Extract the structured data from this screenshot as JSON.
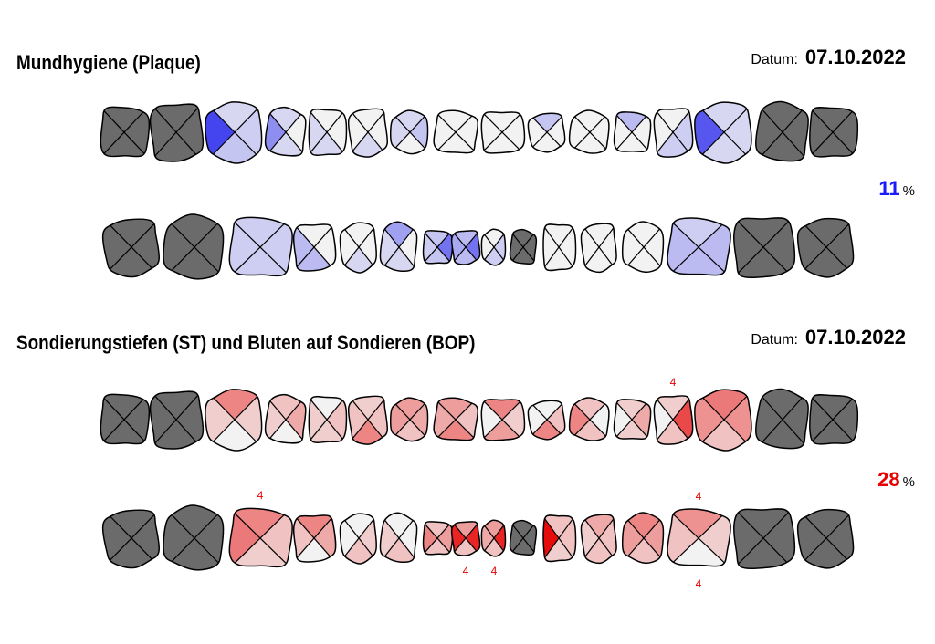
{
  "colors": {
    "plaque": "#3c3cf0",
    "bop": "#e60000",
    "missing": "#6b6b6b",
    "empty": "#f2f2f2",
    "outline": "#000000"
  },
  "plaque": {
    "title": "Mundhygiene (Plaque)",
    "datum_label": "Datum:",
    "datum_value": "07.10.2022",
    "percent_value": "11",
    "percent_unit": "%",
    "upper_row": [
      {
        "missing": true
      },
      {
        "missing": true
      },
      {
        "fill": [
          0.15,
          0.2,
          0.25,
          0.95
        ]
      },
      {
        "fill": [
          0.15,
          0,
          0.15,
          0.55
        ]
      },
      {
        "fill": [
          0,
          0,
          0.15,
          0.15
        ]
      },
      {
        "fill": [
          0,
          0,
          0.15,
          0
        ]
      },
      {
        "fill": [
          0.15,
          0.25,
          0,
          0.15
        ]
      },
      {
        "fill": [
          0,
          0,
          0,
          0
        ]
      },
      {
        "fill": [
          0,
          0,
          0,
          0
        ]
      },
      {
        "fill": [
          0.25,
          0,
          0,
          0
        ]
      },
      {
        "fill": [
          0,
          0,
          0,
          0
        ]
      },
      {
        "fill": [
          0.3,
          0,
          0,
          0
        ]
      },
      {
        "fill": [
          0,
          0.2,
          0.2,
          0
        ]
      },
      {
        "fill": [
          0.15,
          0.15,
          0.15,
          0.85
        ]
      },
      {
        "missing": true
      },
      {
        "missing": true
      }
    ],
    "lower_row": [
      {
        "missing": true
      },
      {
        "missing": true
      },
      {
        "fill": [
          0.2,
          0.2,
          0.2,
          0.2
        ]
      },
      {
        "fill": [
          0,
          0,
          0.3,
          0.3
        ]
      },
      {
        "fill": [
          0,
          0,
          0.15,
          0
        ]
      },
      {
        "fill": [
          0.45,
          0,
          0.15,
          0.15
        ]
      },
      {
        "fill": [
          0.25,
          0.7,
          0.25,
          0.2
        ]
      },
      {
        "fill": [
          0.3,
          0.7,
          0.3,
          0.4
        ]
      },
      {
        "fill": [
          0,
          0.2,
          0.2,
          0
        ]
      },
      {
        "missing": true
      },
      {
        "fill": [
          0,
          0,
          0,
          0
        ]
      },
      {
        "fill": [
          0,
          0,
          0,
          0
        ]
      },
      {
        "fill": [
          0,
          0,
          0,
          0
        ]
      },
      {
        "fill": [
          0.2,
          0.3,
          0.3,
          0.3
        ]
      },
      {
        "missing": true
      },
      {
        "missing": true
      }
    ]
  },
  "bop": {
    "title": "Sondierungstiefen (ST) und Bluten auf Sondieren (BOP)",
    "datum_label": "Datum:",
    "datum_value": "07.10.2022",
    "percent_value": "28",
    "percent_unit": "%",
    "upper_row": [
      {
        "missing": true
      },
      {
        "missing": true
      },
      {
        "fill": [
          0.45,
          0.15,
          0,
          0.15
        ]
      },
      {
        "fill": [
          0.2,
          0.3,
          0,
          0.15
        ]
      },
      {
        "fill": [
          0,
          0.2,
          0.15,
          0.15
        ]
      },
      {
        "fill": [
          0.15,
          0.2,
          0.45,
          0.2
        ]
      },
      {
        "fill": [
          0.35,
          0.3,
          0.2,
          0.35
        ]
      },
      {
        "fill": [
          0.35,
          0.2,
          0.45,
          0.3
        ]
      },
      {
        "fill": [
          0.45,
          0.15,
          0.35,
          0
        ]
      },
      {
        "fill": [
          0,
          0.2,
          0.45,
          0
        ]
      },
      {
        "fill": [
          0.2,
          0,
          0.2,
          0.45
        ]
      },
      {
        "fill": [
          0.15,
          0.3,
          0.15,
          0
        ]
      },
      {
        "fill": [
          0.15,
          0.7,
          0.2,
          0
        ]
      },
      {
        "fill": [
          0.5,
          0.4,
          0.2,
          0.4
        ]
      },
      {
        "missing": true
      },
      {
        "missing": true
      }
    ],
    "lower_row": [
      {
        "missing": true
      },
      {
        "missing": true
      },
      {
        "fill": [
          0.45,
          0.2,
          0.15,
          0.5
        ]
      },
      {
        "fill": [
          0.45,
          0.3,
          0,
          0.2
        ]
      },
      {
        "fill": [
          0,
          0.15,
          0.2,
          0
        ]
      },
      {
        "fill": [
          0,
          0,
          0.2,
          0.15
        ]
      },
      {
        "fill": [
          0.2,
          0.35,
          0.2,
          0.45
        ]
      },
      {
        "fill": [
          0.35,
          0.85,
          0.2,
          0.85
        ]
      },
      {
        "fill": [
          0.35,
          0.85,
          0.2,
          0.3
        ]
      },
      {
        "missing": true
      },
      {
        "fill": [
          0.2,
          0.2,
          0.15,
          0.95
        ]
      },
      {
        "fill": [
          0.3,
          0.2,
          0.2,
          0.15
        ]
      },
      {
        "fill": [
          0.45,
          0.35,
          0.2,
          0.35
        ]
      },
      {
        "fill": [
          0.4,
          0.15,
          0,
          0.2
        ]
      },
      {
        "missing": true
      },
      {
        "missing": true
      }
    ],
    "pocket_depths": [
      {
        "row": "upper",
        "tooth": 12,
        "side": "top",
        "value": "4"
      },
      {
        "row": "lower",
        "tooth": 2,
        "side": "top",
        "value": "4"
      },
      {
        "row": "lower",
        "tooth": 13,
        "side": "top",
        "value": "4"
      },
      {
        "row": "lower",
        "tooth": 7,
        "side": "bottom",
        "value": "4"
      },
      {
        "row": "lower",
        "tooth": 8,
        "side": "bottom",
        "value": "4"
      },
      {
        "row": "lower",
        "tooth": 13,
        "side": "bottom",
        "value": "4"
      }
    ]
  }
}
